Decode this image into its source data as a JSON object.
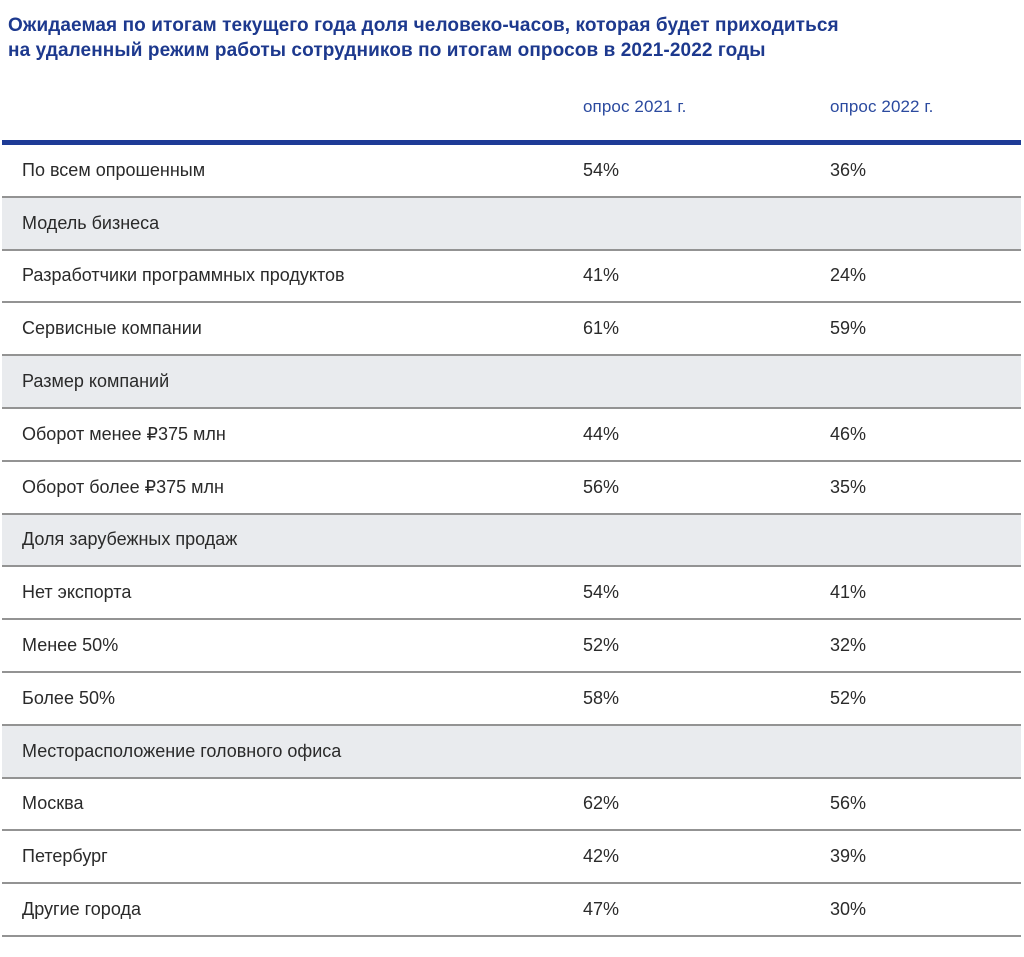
{
  "header": {
    "title_line1": "Ожидаемая по итогам текущего года доля человеко-часов, которая будет приходиться",
    "title_line2": "на удаленный режим работы сотрудников по итогам опросов в 2021-2022 годы"
  },
  "colors": {
    "title_blue": "#1d398e",
    "column_header_blue": "#2b4a9f",
    "table_top_rule_blue": "#1e3b96",
    "row_divider_gray": "#939393",
    "section_row_background": "#e9ebee",
    "body_text": "#2a2a2a",
    "page_background": "#ffffff"
  },
  "chart_data": {
    "type": "table",
    "title": "Ожидаемая по итогам текущего года доля человеко-часов, которая будет приходиться на удаленный режим работы сотрудников по итогам опросов в 2021-2022 годы",
    "columns": [
      "опрос 2021 г.",
      "опрос 2022 г."
    ],
    "unit": "%",
    "rows": [
      {
        "kind": "data",
        "label": "По всем опрошенным",
        "numeric": [
          54,
          36
        ],
        "values": [
          "54%",
          "36%"
        ]
      },
      {
        "kind": "section",
        "label": "Модель бизнеса"
      },
      {
        "kind": "data",
        "label": "Разработчики программных продуктов",
        "numeric": [
          41,
          24
        ],
        "values": [
          "41%",
          "24%"
        ]
      },
      {
        "kind": "data",
        "label": "Сервисные компании",
        "numeric": [
          61,
          59
        ],
        "values": [
          "61%",
          "59%"
        ]
      },
      {
        "kind": "section",
        "label": "Размер компаний"
      },
      {
        "kind": "data",
        "label": "Оборот менее ₽375 млн",
        "numeric": [
          44,
          46
        ],
        "values": [
          "44%",
          "46%"
        ]
      },
      {
        "kind": "data",
        "label": "Оборот более ₽375 млн",
        "numeric": [
          56,
          35
        ],
        "values": [
          "56%",
          "35%"
        ]
      },
      {
        "kind": "section",
        "label": "Доля зарубежных продаж"
      },
      {
        "kind": "data",
        "label": "Нет экспорта",
        "numeric": [
          54,
          41
        ],
        "values": [
          "54%",
          "41%"
        ]
      },
      {
        "kind": "data",
        "label": "Менее 50%",
        "numeric": [
          52,
          32
        ],
        "values": [
          "52%",
          "32%"
        ]
      },
      {
        "kind": "data",
        "label": "Более 50%",
        "numeric": [
          58,
          52
        ],
        "values": [
          "58%",
          "52%"
        ]
      },
      {
        "kind": "section",
        "label": "Месторасположение головного офиса"
      },
      {
        "kind": "data",
        "label": "Москва",
        "numeric": [
          62,
          56
        ],
        "values": [
          "62%",
          "56%"
        ]
      },
      {
        "kind": "data",
        "label": "Петербург",
        "numeric": [
          42,
          39
        ],
        "values": [
          "42%",
          "39%"
        ]
      },
      {
        "kind": "data",
        "label": "Другие города",
        "numeric": [
          47,
          30
        ],
        "values": [
          "47%",
          "30%"
        ]
      }
    ]
  }
}
